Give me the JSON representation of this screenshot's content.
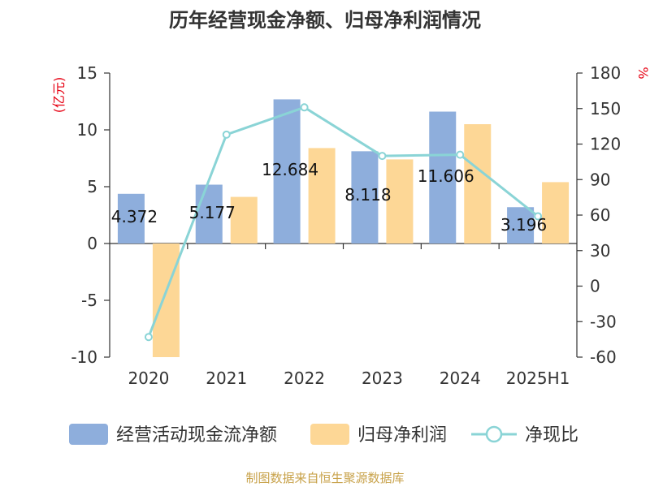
{
  "chart_data": {
    "type": "bar",
    "title": "历年经营现金净额、归母净利润情况",
    "categories": [
      "2020",
      "2021",
      "2022",
      "2023",
      "2024",
      "2025H1"
    ],
    "y_left": {
      "unit": "(亿元)",
      "ylim": [
        -10,
        15
      ],
      "ticks": [
        "15",
        "10",
        "5",
        "0",
        "-5",
        "-10"
      ]
    },
    "y_right": {
      "unit": "%",
      "ylim": [
        -60,
        180
      ],
      "ticks": [
        "180",
        "150",
        "120",
        "90",
        "60",
        "30",
        "0",
        "-30",
        "-60"
      ]
    },
    "series": [
      {
        "name": "经营活动现金流净额",
        "type": "bar",
        "axis": "left",
        "color": "#8eaedc",
        "values": [
          4.372,
          5.177,
          12.684,
          8.118,
          11.606,
          3.196
        ],
        "labels": [
          "4.372",
          "5.177",
          "12.684",
          "8.118",
          "11.606",
          "3.196"
        ]
      },
      {
        "name": "归母净利润",
        "type": "bar",
        "axis": "left",
        "color": "#fdd796",
        "values": [
          -10,
          4.1,
          8.4,
          7.4,
          10.5,
          5.4
        ]
      },
      {
        "name": "净现比",
        "type": "line",
        "axis": "right",
        "color": "#8ad4d6",
        "values": [
          -43,
          128,
          151,
          110,
          111,
          59
        ]
      }
    ],
    "legend_position": "bottom",
    "grid": false
  },
  "source_text": "制图数据来自恒生聚源数据库"
}
